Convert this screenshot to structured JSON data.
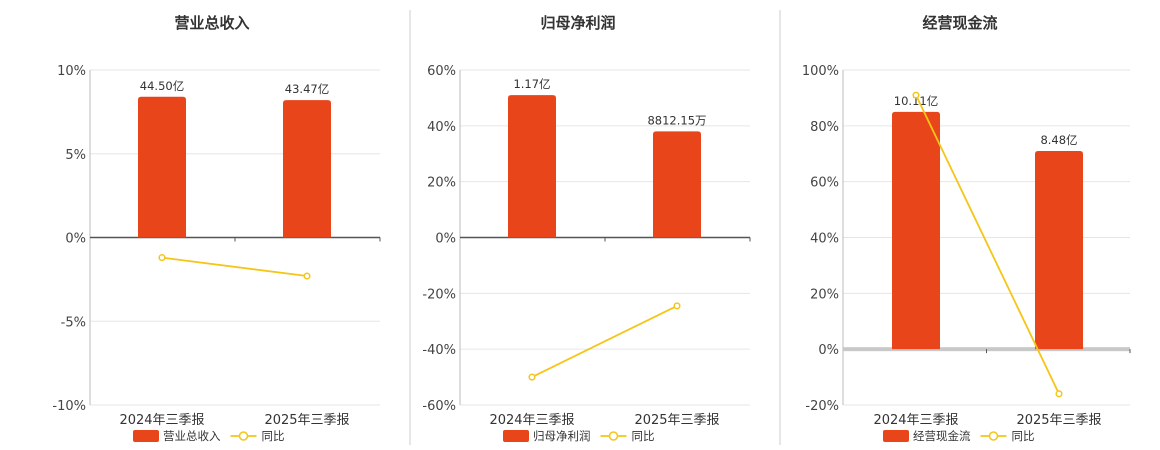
{
  "colors": {
    "bar": "#E8451A",
    "line": "#F5C518",
    "grid": "#E6E6E6",
    "axis": "#555555",
    "divider": "#CCCCCC"
  },
  "chart_data": [
    {
      "type": "bar",
      "title": "营业总收入",
      "categories": [
        "2024年三季报",
        "2025年三季报"
      ],
      "ylim": [
        -10,
        10
      ],
      "yticks": [
        "10%",
        "5%",
        "0%",
        "-5%",
        "-10%"
      ],
      "series": [
        {
          "name": "营业总收入",
          "kind": "bar",
          "values": [
            8.4,
            8.2
          ],
          "labels": [
            "44.50亿",
            "43.47亿"
          ]
        },
        {
          "name": "同比",
          "kind": "line",
          "values": [
            -1.2,
            -2.3
          ]
        }
      ],
      "legend": "bottom",
      "grid": true
    },
    {
      "type": "bar",
      "title": "归母净利润",
      "categories": [
        "2024年三季报",
        "2025年三季报"
      ],
      "ylim": [
        -60,
        60
      ],
      "yticks": [
        "60%",
        "40%",
        "20%",
        "0%",
        "-20%",
        "-40%",
        "-60%"
      ],
      "series": [
        {
          "name": "归母净利润",
          "kind": "bar",
          "values": [
            51,
            38
          ],
          "labels": [
            "1.17亿",
            "8812.15万"
          ]
        },
        {
          "name": "同比",
          "kind": "line",
          "values": [
            -50,
            -24.5
          ]
        }
      ],
      "legend": "bottom",
      "grid": true
    },
    {
      "type": "bar",
      "title": "经营现金流",
      "categories": [
        "2024年三季报",
        "2025年三季报"
      ],
      "ylim": [
        -20,
        100
      ],
      "yticks": [
        "100%",
        "80%",
        "60%",
        "40%",
        "20%",
        "0%",
        "-20%"
      ],
      "series": [
        {
          "name": "经营现金流",
          "kind": "bar",
          "values": [
            85,
            71
          ],
          "labels": [
            "10.11亿",
            "8.48亿"
          ]
        },
        {
          "name": "同比",
          "kind": "line",
          "values": [
            91,
            -16
          ]
        }
      ],
      "legend": "bottom",
      "grid": true
    }
  ]
}
